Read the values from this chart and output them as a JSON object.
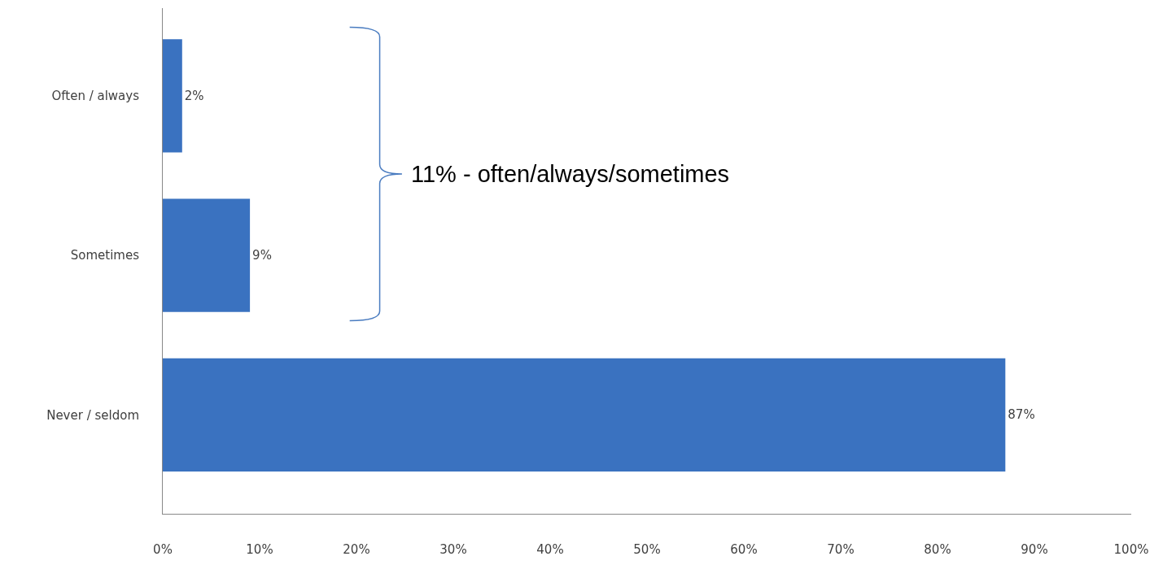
{
  "chart_data": {
    "type": "bar",
    "orientation": "horizontal",
    "categories": [
      "Often / always",
      "Sometimes",
      "Never / seldom"
    ],
    "values": [
      2,
      9,
      87
    ],
    "value_labels": [
      "2%",
      "9%",
      "87%"
    ],
    "color": "#3a72c0",
    "xlim": [
      0,
      100
    ],
    "xticks": [
      {
        "value": 0,
        "label": "0%"
      },
      {
        "value": 10,
        "label": "10%"
      },
      {
        "value": 20,
        "label": "20%"
      },
      {
        "value": 30,
        "label": "30%"
      },
      {
        "value": 40,
        "label": "40%"
      },
      {
        "value": 50,
        "label": "50%"
      },
      {
        "value": 60,
        "label": "60%"
      },
      {
        "value": 70,
        "label": "70%"
      },
      {
        "value": 80,
        "label": "80%"
      },
      {
        "value": 90,
        "label": "90%"
      },
      {
        "value": 100,
        "label": "100%"
      }
    ],
    "legend": false,
    "annotations": [
      "11% - often/always/sometimes"
    ]
  }
}
